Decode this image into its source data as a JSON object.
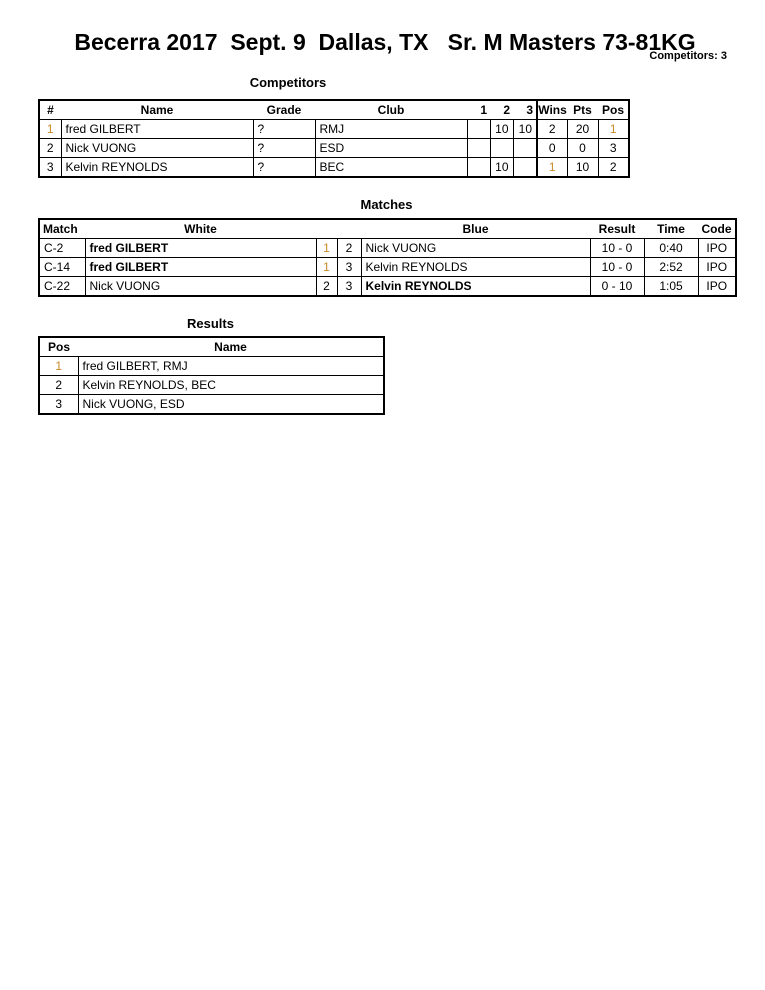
{
  "header": {
    "title": "Becerra 2017  Sept. 9  Dallas, TX   Sr. M Masters 73-81KG",
    "competitors_count": "Competitors: 3"
  },
  "competitors": {
    "title": "Competitors",
    "columns": [
      "#",
      "Name",
      "Grade",
      "Club",
      "1",
      "2",
      "3",
      "Wins",
      "Pts",
      "Pos"
    ],
    "rows": [
      {
        "num": "1",
        "name": "fred GILBERT",
        "grade": "?",
        "club": "RMJ",
        "s1": "",
        "s2": "10",
        "s3": "10",
        "wins": "2",
        "pts": "20",
        "pos": "1"
      },
      {
        "num": "2",
        "name": "Nick VUONG",
        "grade": "?",
        "club": "ESD",
        "s1": "",
        "s2": "",
        "s3": "",
        "wins": "0",
        "pts": "0",
        "pos": "3"
      },
      {
        "num": "3",
        "name": "Kelvin REYNOLDS",
        "grade": "?",
        "club": "BEC",
        "s1": "",
        "s2": "10",
        "s3": "",
        "wins": "1",
        "pts": "10",
        "pos": "2"
      }
    ]
  },
  "matches": {
    "title": "Matches",
    "columns": [
      "Match",
      "White",
      "Blue",
      "Result",
      "Time",
      "Code"
    ],
    "rows": [
      {
        "match": "C-2",
        "white": "fred GILBERT",
        "white_num": "1",
        "blue_num": "2",
        "blue": "Nick VUONG",
        "result": "10 - 0",
        "time": "0:40",
        "code": "IPO",
        "winner": "white"
      },
      {
        "match": "C-14",
        "white": "fred GILBERT",
        "white_num": "1",
        "blue_num": "3",
        "blue": "Kelvin REYNOLDS",
        "result": "10 - 0",
        "time": "2:52",
        "code": "IPO",
        "winner": "white"
      },
      {
        "match": "C-22",
        "white": "Nick VUONG",
        "white_num": "2",
        "blue_num": "3",
        "blue": "Kelvin REYNOLDS",
        "result": "0 - 10",
        "time": "1:05",
        "code": "IPO",
        "winner": "blue"
      }
    ]
  },
  "results": {
    "title": "Results",
    "columns": [
      "Pos",
      "Name"
    ],
    "rows": [
      {
        "pos": "1",
        "name": "fred GILBERT, RMJ"
      },
      {
        "pos": "2",
        "name": "Kelvin REYNOLDS, BEC"
      },
      {
        "pos": "3",
        "name": "Nick VUONG, ESD"
      }
    ]
  },
  "colors": {
    "first_place": "#c98a2a"
  }
}
